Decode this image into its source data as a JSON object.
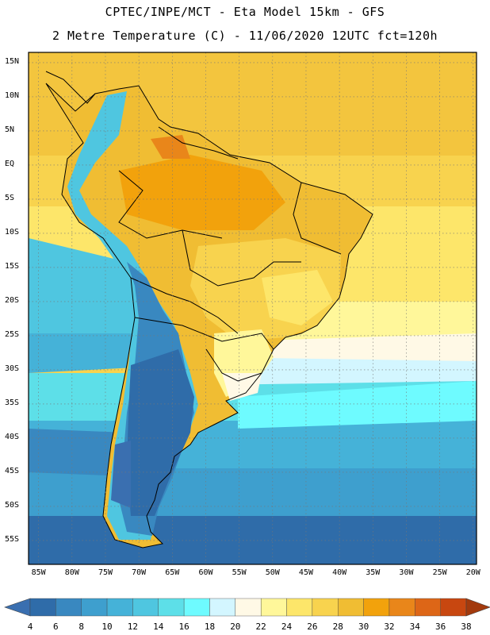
{
  "header": {
    "line1": "CPTEC/INPE/MCT -  Eta Model 15km - GFS",
    "line2": "2 Metre Temperature (C) - 11/06/2020 12UTC fct=120h"
  },
  "map": {
    "lat_labels": [
      "15N",
      "10N",
      "5N",
      "EQ",
      "5S",
      "10S",
      "15S",
      "20S",
      "25S",
      "30S",
      "35S",
      "40S",
      "45S",
      "50S",
      "55S"
    ],
    "lon_labels": [
      "85W",
      "80W",
      "75W",
      "70W",
      "65W",
      "60W",
      "55W",
      "50W",
      "45W",
      "40W",
      "35W",
      "30W",
      "25W",
      "20W"
    ],
    "extent": {
      "lon_min": -86.5,
      "lon_max": -19.5,
      "lat_min": -58.5,
      "lat_max": 16.5
    }
  },
  "legend": {
    "levels": [
      "4",
      "6",
      "8",
      "10",
      "12",
      "14",
      "16",
      "18",
      "20",
      "22",
      "24",
      "26",
      "28",
      "30",
      "32",
      "34",
      "36",
      "38"
    ],
    "colors": [
      "#3a6fb0",
      "#2f6ca9",
      "#3988c0",
      "#3e9fce",
      "#45b2d8",
      "#4fc6e0",
      "#5ddfe8",
      "#6efbff",
      "#d3f6ff",
      "#fff9e6",
      "#fff79a",
      "#fde66a",
      "#f8d34e",
      "#f0bd33",
      "#f2a20c",
      "#e9861a",
      "#dd6617",
      "#c84710",
      "#a33a0d"
    ]
  },
  "style": {
    "ocean_cold": "#2b5aa0",
    "land_line": "#000000"
  }
}
